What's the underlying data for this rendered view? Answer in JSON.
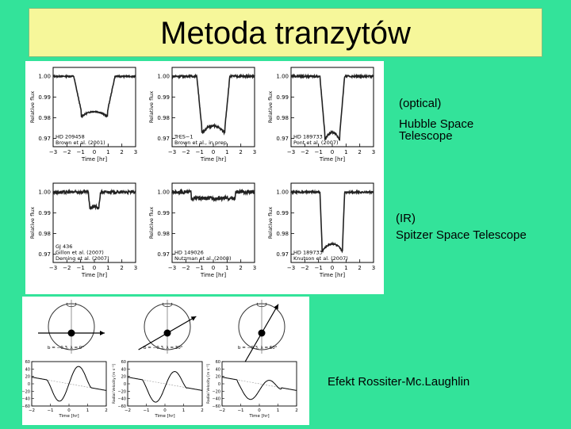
{
  "slide": {
    "title": "Metoda tranzytów"
  },
  "labels": {
    "optical": "(optical)",
    "hubble_1": "Hubble Space",
    "hubble_2": "Telescope",
    "ir": "(IR)",
    "spitzer": "Spitzer Space Telescope",
    "rm": "Efekt Rossiter-Mc.Laughlin"
  },
  "transit_axes": {
    "ylabel": "Relative flux",
    "xlabel": "Time [hr]",
    "yticks": [
      "1.00",
      "0.99",
      "0.98",
      "0.97"
    ],
    "xticks": [
      "−3",
      "−2",
      "−1",
      "0",
      "1",
      "2",
      "3"
    ]
  },
  "transit_panels": [
    {
      "caption_1": "HD 209458",
      "caption_2": "Brown et al. (2001)"
    },
    {
      "caption_1": "TrES−1",
      "caption_2": "Brown et al., in prep."
    },
    {
      "caption_1": "HD 189733",
      "caption_2": "Pont et al. (2007)"
    },
    {
      "caption_1": "GJ 436",
      "caption_2": "Gillon et al. (2007)",
      "caption_3": "Deming et al. (2007)"
    },
    {
      "caption_1": "HD 149026",
      "caption_2": "Nutzman et al. (2008)"
    },
    {
      "caption_1": "HD 189733",
      "caption_2": "Knutson et al. (2007)"
    }
  ],
  "rm_axes": {
    "ylabel": "Radial Velocity [m s⁻¹]",
    "xlabel": "Time [hr]",
    "yticks": [
      "60",
      "40",
      "20",
      "0",
      "−20",
      "−40",
      "−60"
    ],
    "xticks": [
      "−2",
      "−1",
      "0",
      "1",
      "2"
    ]
  },
  "rm_panels": [
    {
      "caption": "b = −0.3, λ = 0°"
    },
    {
      "caption": "b = −0.3, λ = 30°"
    },
    {
      "caption": "b = −0.3, λ = 60°"
    }
  ]
}
